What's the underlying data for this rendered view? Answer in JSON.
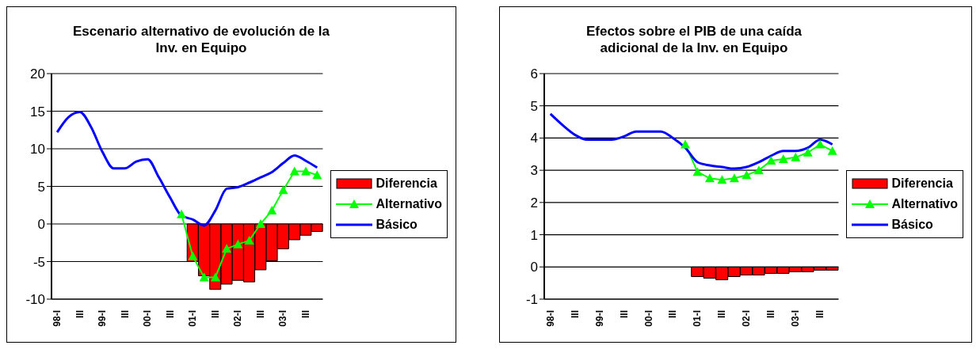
{
  "chart_data": [
    {
      "type": "line",
      "title": "Escenario alternativo de evolución de la Inv. en Equipo",
      "categories": [
        "98-I",
        null,
        "III",
        null,
        "99-I",
        null,
        "III",
        null,
        "00-I",
        null,
        "III",
        null,
        "01-I",
        null,
        "III",
        null,
        "02-I",
        null,
        "III",
        null,
        "03-I",
        null,
        "III",
        null
      ],
      "series": [
        {
          "name": "Diferencia",
          "type": "bar",
          "color": "#ff0000",
          "values": [
            null,
            null,
            null,
            null,
            null,
            null,
            null,
            null,
            null,
            null,
            null,
            null,
            -5.0,
            -6.9,
            -8.7,
            -8.0,
            -7.5,
            -7.7,
            -6.1,
            -4.9,
            -3.3,
            -2.1,
            -1.5,
            -1.0
          ]
        },
        {
          "name": "Alternativo",
          "color": "#00ff00",
          "marker": "triangle",
          "values": [
            null,
            null,
            null,
            null,
            null,
            null,
            null,
            null,
            null,
            null,
            null,
            1.3,
            -4.3,
            -7.1,
            -7.1,
            -3.3,
            -2.7,
            -2.2,
            0,
            1.8,
            4.5,
            7.0,
            7.0,
            6.5
          ]
        },
        {
          "name": "Básico",
          "color": "#0000ff",
          "values": [
            12.2,
            14.2,
            14.9,
            12.9,
            9.6,
            7.4,
            7.4,
            8.3,
            8.6,
            6.2,
            3.5,
            1.1,
            0.6,
            -0.2,
            1.8,
            4.7,
            4.9,
            5.5,
            6.2,
            6.9,
            8.1,
            9.1,
            8.4,
            7.5
          ]
        }
      ],
      "ylim": [
        -10,
        20
      ],
      "yticks": [
        -10,
        -5,
        0,
        5,
        10,
        15,
        20
      ],
      "grid": "y",
      "legend": "right"
    },
    {
      "type": "line",
      "title": "Efectos sobre el PIB de una caída adicional de la Inv. en Equipo",
      "categories": [
        "98-I",
        null,
        "III",
        null,
        "99-I",
        null,
        "III",
        null,
        "00-I",
        null,
        "III",
        null,
        "01-I",
        null,
        "III",
        null,
        "02-I",
        null,
        "III",
        null,
        "03-I",
        null,
        "III",
        null
      ],
      "series": [
        {
          "name": "Diferencia",
          "type": "bar",
          "color": "#ff0000",
          "values": [
            null,
            null,
            null,
            null,
            null,
            null,
            null,
            null,
            null,
            null,
            null,
            null,
            -0.3,
            -0.35,
            -0.4,
            -0.3,
            -0.25,
            -0.25,
            -0.2,
            -0.2,
            -0.15,
            -0.15,
            -0.1,
            -0.1
          ]
        },
        {
          "name": "Alternativo",
          "color": "#00ff00",
          "marker": "triangle",
          "values": [
            null,
            null,
            null,
            null,
            null,
            null,
            null,
            null,
            null,
            null,
            null,
            3.8,
            2.95,
            2.75,
            2.7,
            2.75,
            2.85,
            3.0,
            3.3,
            3.35,
            3.4,
            3.55,
            3.8,
            3.6
          ]
        },
        {
          "name": "Básico",
          "color": "#0000ff",
          "values": [
            4.75,
            4.4,
            4.1,
            3.95,
            3.95,
            3.95,
            4.05,
            4.2,
            4.2,
            4.2,
            4.0,
            3.7,
            3.25,
            3.15,
            3.1,
            3.05,
            3.1,
            3.25,
            3.45,
            3.6,
            3.6,
            3.7,
            3.95,
            3.8
          ]
        }
      ],
      "ylim": [
        -1,
        6
      ],
      "yticks": [
        -1,
        0,
        1,
        2,
        3,
        4,
        5,
        6
      ],
      "grid": "y",
      "legend": "right"
    }
  ]
}
